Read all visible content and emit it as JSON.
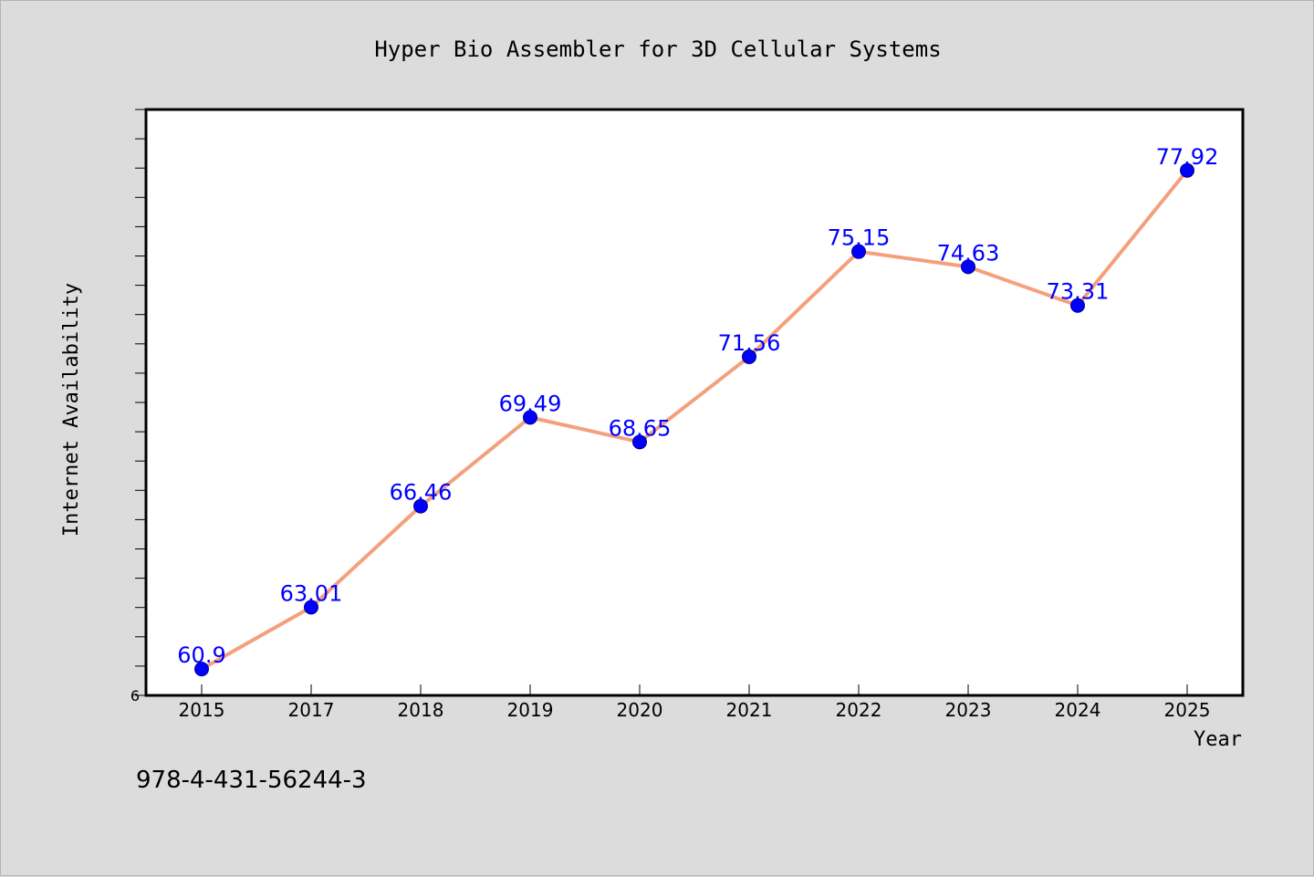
{
  "chart_data": {
    "type": "line",
    "title": "Hyper Bio Assembler for 3D Cellular Systems",
    "xlabel": "Year",
    "ylabel": "Internet Availability",
    "categories": [
      "2015",
      "2017",
      "2018",
      "2019",
      "2020",
      "2021",
      "2022",
      "2023",
      "2024",
      "2025"
    ],
    "series": [
      {
        "values": [
          60.9,
          63.01,
          66.46,
          69.49,
          68.65,
          71.56,
          75.15,
          74.63,
          73.31,
          77.92
        ]
      }
    ],
    "data_labels": [
      "60.9",
      "63.01",
      "66.46",
      "69.49",
      "68.65",
      "71.56",
      "75.15",
      "74.63",
      "73.31",
      "77.92"
    ],
    "y_tick_labels": [
      "6"
    ],
    "ylim": [
      60,
      80
    ],
    "y_minor_tick_step": 1,
    "grid": false,
    "colors": {
      "line": "#f4a07c",
      "marker": "#0000ff",
      "data_label": "#0000ff",
      "plot_background": "#ffffff",
      "figure_background": "#dcdcdc"
    }
  },
  "footer": {
    "isbn": "978-4-431-56244-3"
  }
}
